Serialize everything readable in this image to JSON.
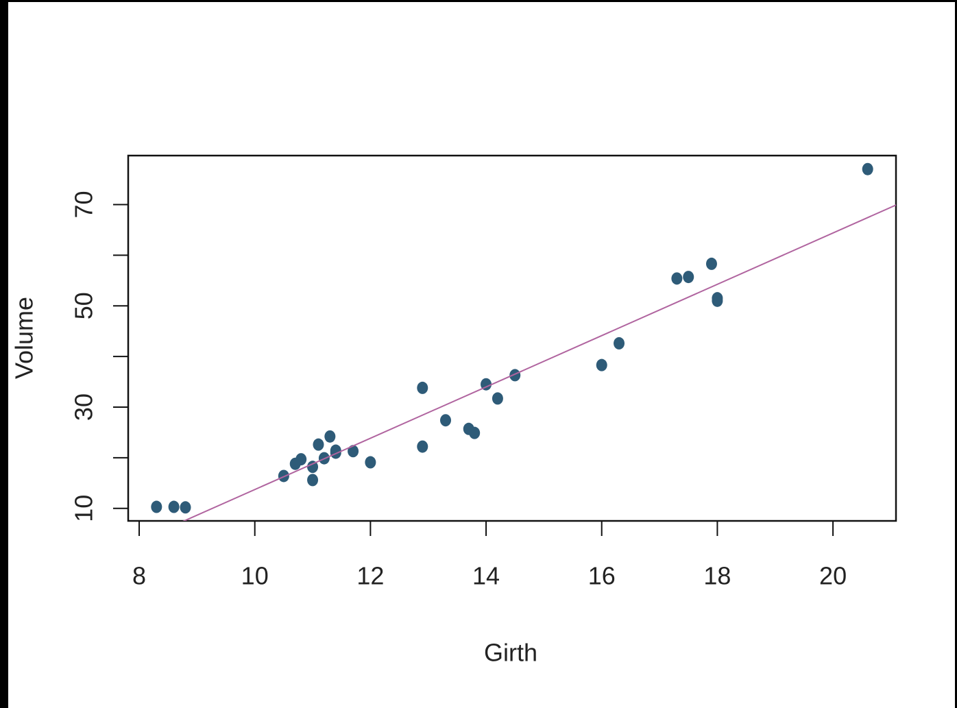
{
  "chart_data": {
    "type": "scatter",
    "x_label": "Girth",
    "y_label": "Volume",
    "x": [
      8.3,
      8.6,
      8.8,
      10.5,
      10.7,
      10.8,
      11.0,
      11.0,
      11.1,
      11.2,
      11.3,
      11.4,
      11.4,
      11.7,
      12.0,
      12.9,
      12.9,
      13.3,
      13.7,
      13.8,
      14.0,
      14.2,
      14.5,
      16.0,
      16.3,
      17.3,
      17.5,
      17.9,
      18.0,
      18.0,
      20.6
    ],
    "values": [
      10.3,
      10.3,
      10.2,
      16.4,
      18.8,
      19.7,
      15.6,
      18.2,
      22.6,
      19.9,
      24.2,
      21.0,
      21.4,
      21.3,
      19.1,
      22.2,
      33.8,
      27.4,
      25.7,
      24.9,
      34.5,
      31.7,
      36.3,
      38.3,
      42.6,
      55.4,
      55.7,
      58.3,
      51.5,
      51.0,
      77.0
    ],
    "color": "#2e5b78",
    "fit": {
      "intercept": -36.94,
      "slope": 5.066,
      "color": "#b0649f"
    },
    "xlim": [
      7.81,
      21.09
    ],
    "xticks": [
      8,
      10,
      12,
      14,
      16,
      18,
      20
    ],
    "ylim": [
      7.53,
      79.67
    ],
    "yticks": [
      10,
      {
        "value": 20,
        "label": null
      },
      30,
      {
        "value": 40,
        "label": null
      },
      50,
      {
        "value": 60,
        "label": null
      },
      70
    ]
  }
}
